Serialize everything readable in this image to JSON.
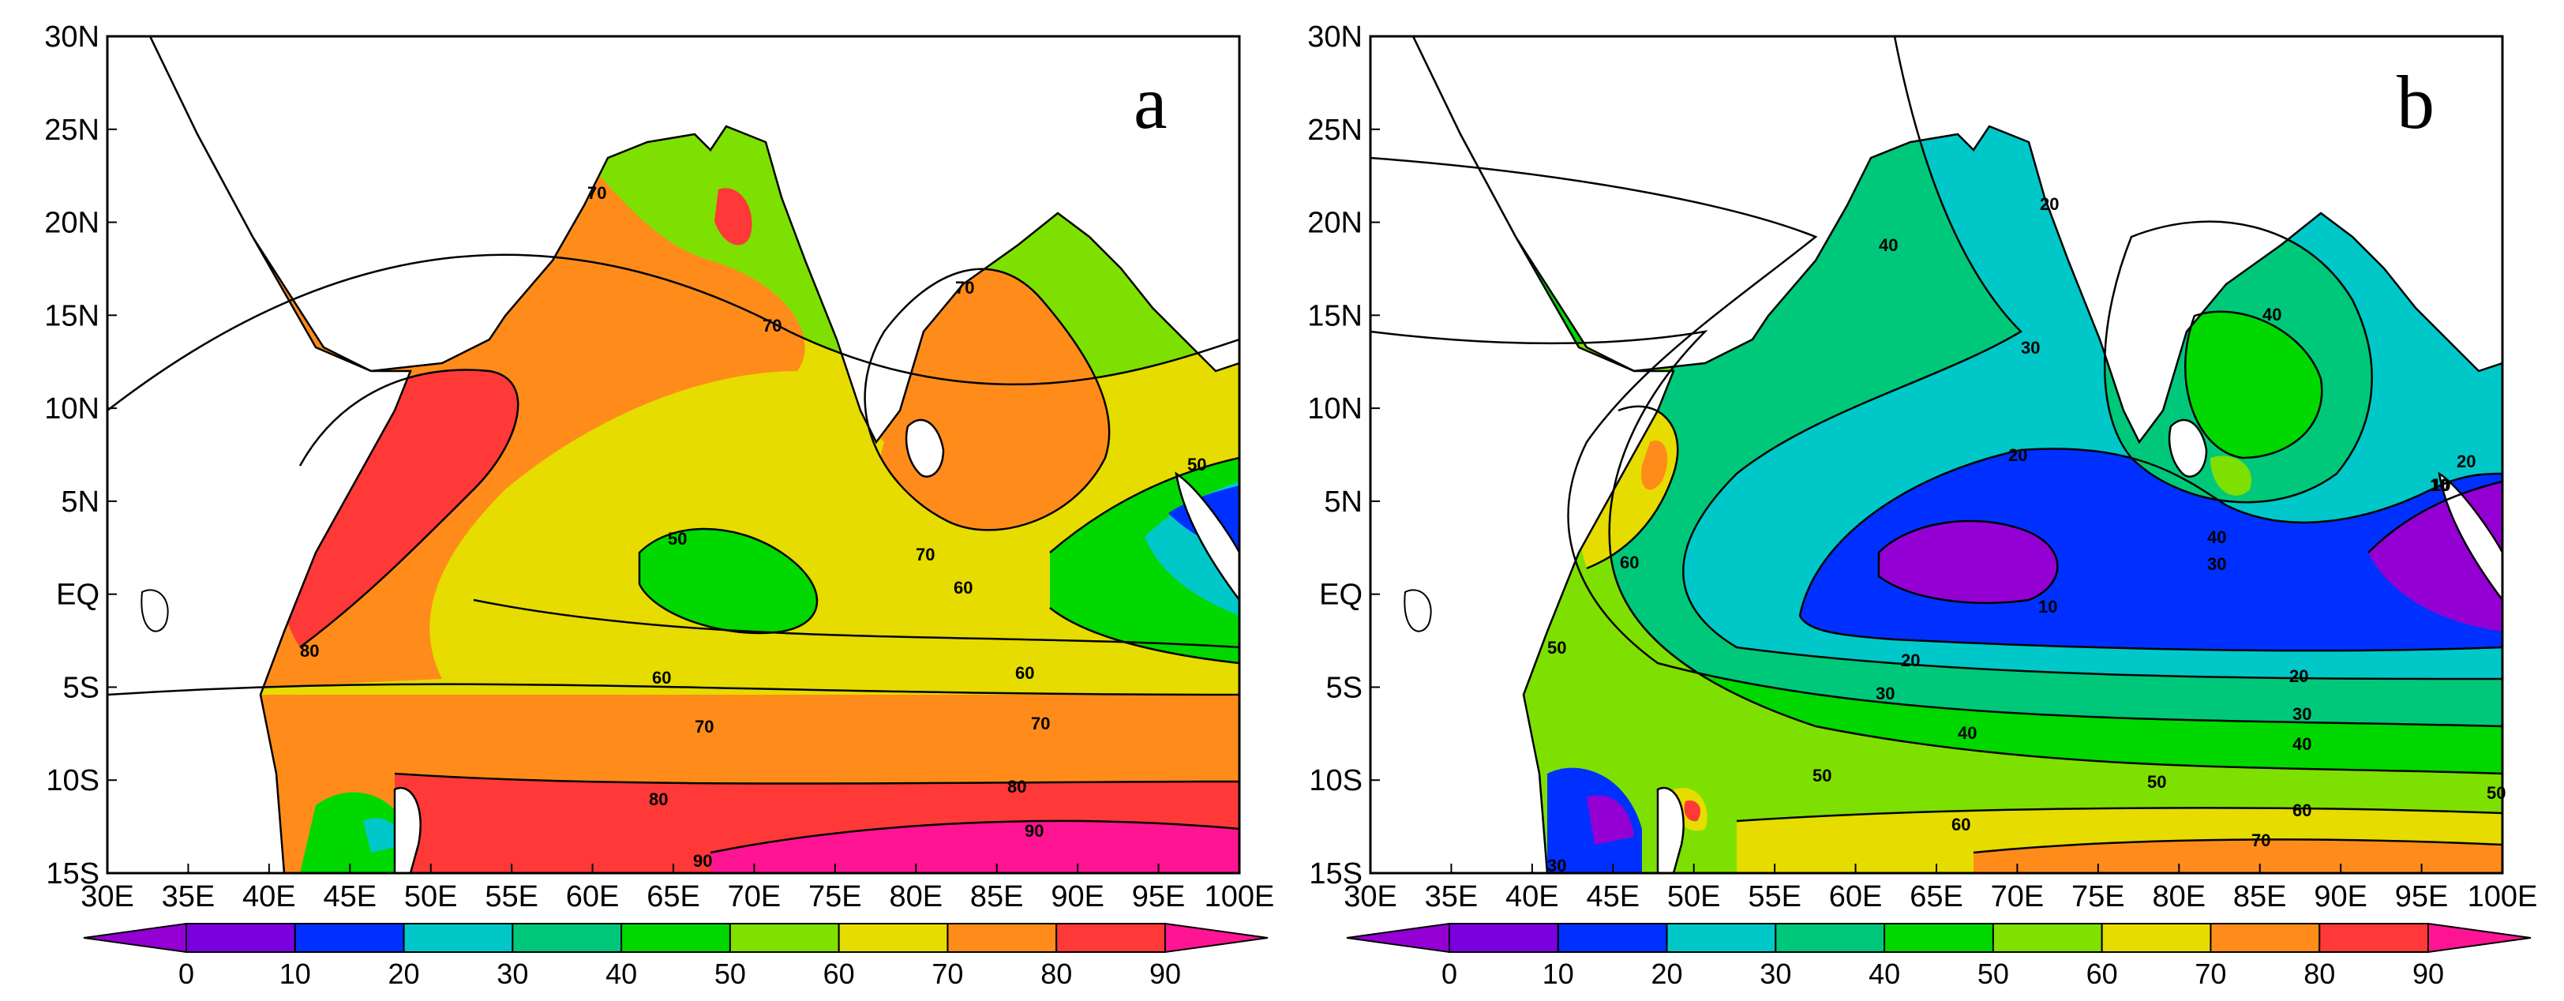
{
  "panels": [
    {
      "id": "a",
      "letter": "a",
      "contour_labels": [
        "70",
        "70",
        "70",
        "50",
        "70",
        "60",
        "60",
        "60",
        "70",
        "70",
        "80",
        "80",
        "90",
        "90",
        "50",
        "80"
      ]
    },
    {
      "id": "b",
      "letter": "b",
      "contour_labels": [
        "40",
        "20",
        "30",
        "40",
        "20",
        "40",
        "30",
        "10",
        "20",
        "60",
        "50",
        "10",
        "20",
        "30",
        "40",
        "50",
        "60",
        "70",
        "50",
        "20",
        "30",
        "10",
        "40",
        "50",
        "60",
        "30"
      ]
    }
  ],
  "axes": {
    "x_ticks": [
      "30E",
      "35E",
      "40E",
      "45E",
      "50E",
      "55E",
      "60E",
      "65E",
      "70E",
      "75E",
      "80E",
      "85E",
      "90E",
      "95E",
      "100E"
    ],
    "y_ticks": [
      "30N",
      "25N",
      "20N",
      "15N",
      "10N",
      "5N",
      "EQ",
      "5S",
      "10S",
      "15S"
    ]
  },
  "colorbar": {
    "ticks": [
      "0",
      "10",
      "20",
      "30",
      "40",
      "50",
      "60",
      "70",
      "80",
      "90"
    ],
    "colors": [
      "#9400d3",
      "#7b00e0",
      "#0030ff",
      "#00c8c8",
      "#00c87a",
      "#00d800",
      "#80e000",
      "#e6dc00",
      "#ff8c1a",
      "#ff3838",
      "#ff1493"
    ]
  },
  "colors": {
    "coast": "#000000",
    "land": "#ffffff"
  }
}
